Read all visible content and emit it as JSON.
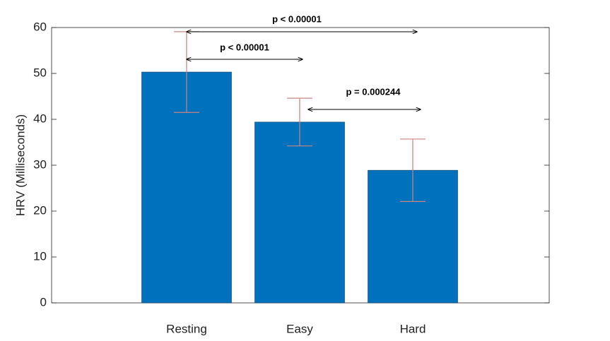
{
  "chart_data": {
    "type": "bar",
    "ylabel": "HRV (Milliseconds)",
    "categories": [
      "Resting",
      "Easy",
      "Hard"
    ],
    "values": [
      50.3,
      39.4,
      28.9
    ],
    "errors": [
      8.8,
      5.2,
      6.8
    ],
    "color": "#0072bd",
    "error_color": "#c98383",
    "ylim": [
      0,
      60
    ],
    "yticks": [
      0,
      10,
      20,
      30,
      40,
      50,
      60
    ],
    "annotations": [
      "p < 0.00001",
      "p < 0.00001",
      "p = 0.000244"
    ]
  }
}
